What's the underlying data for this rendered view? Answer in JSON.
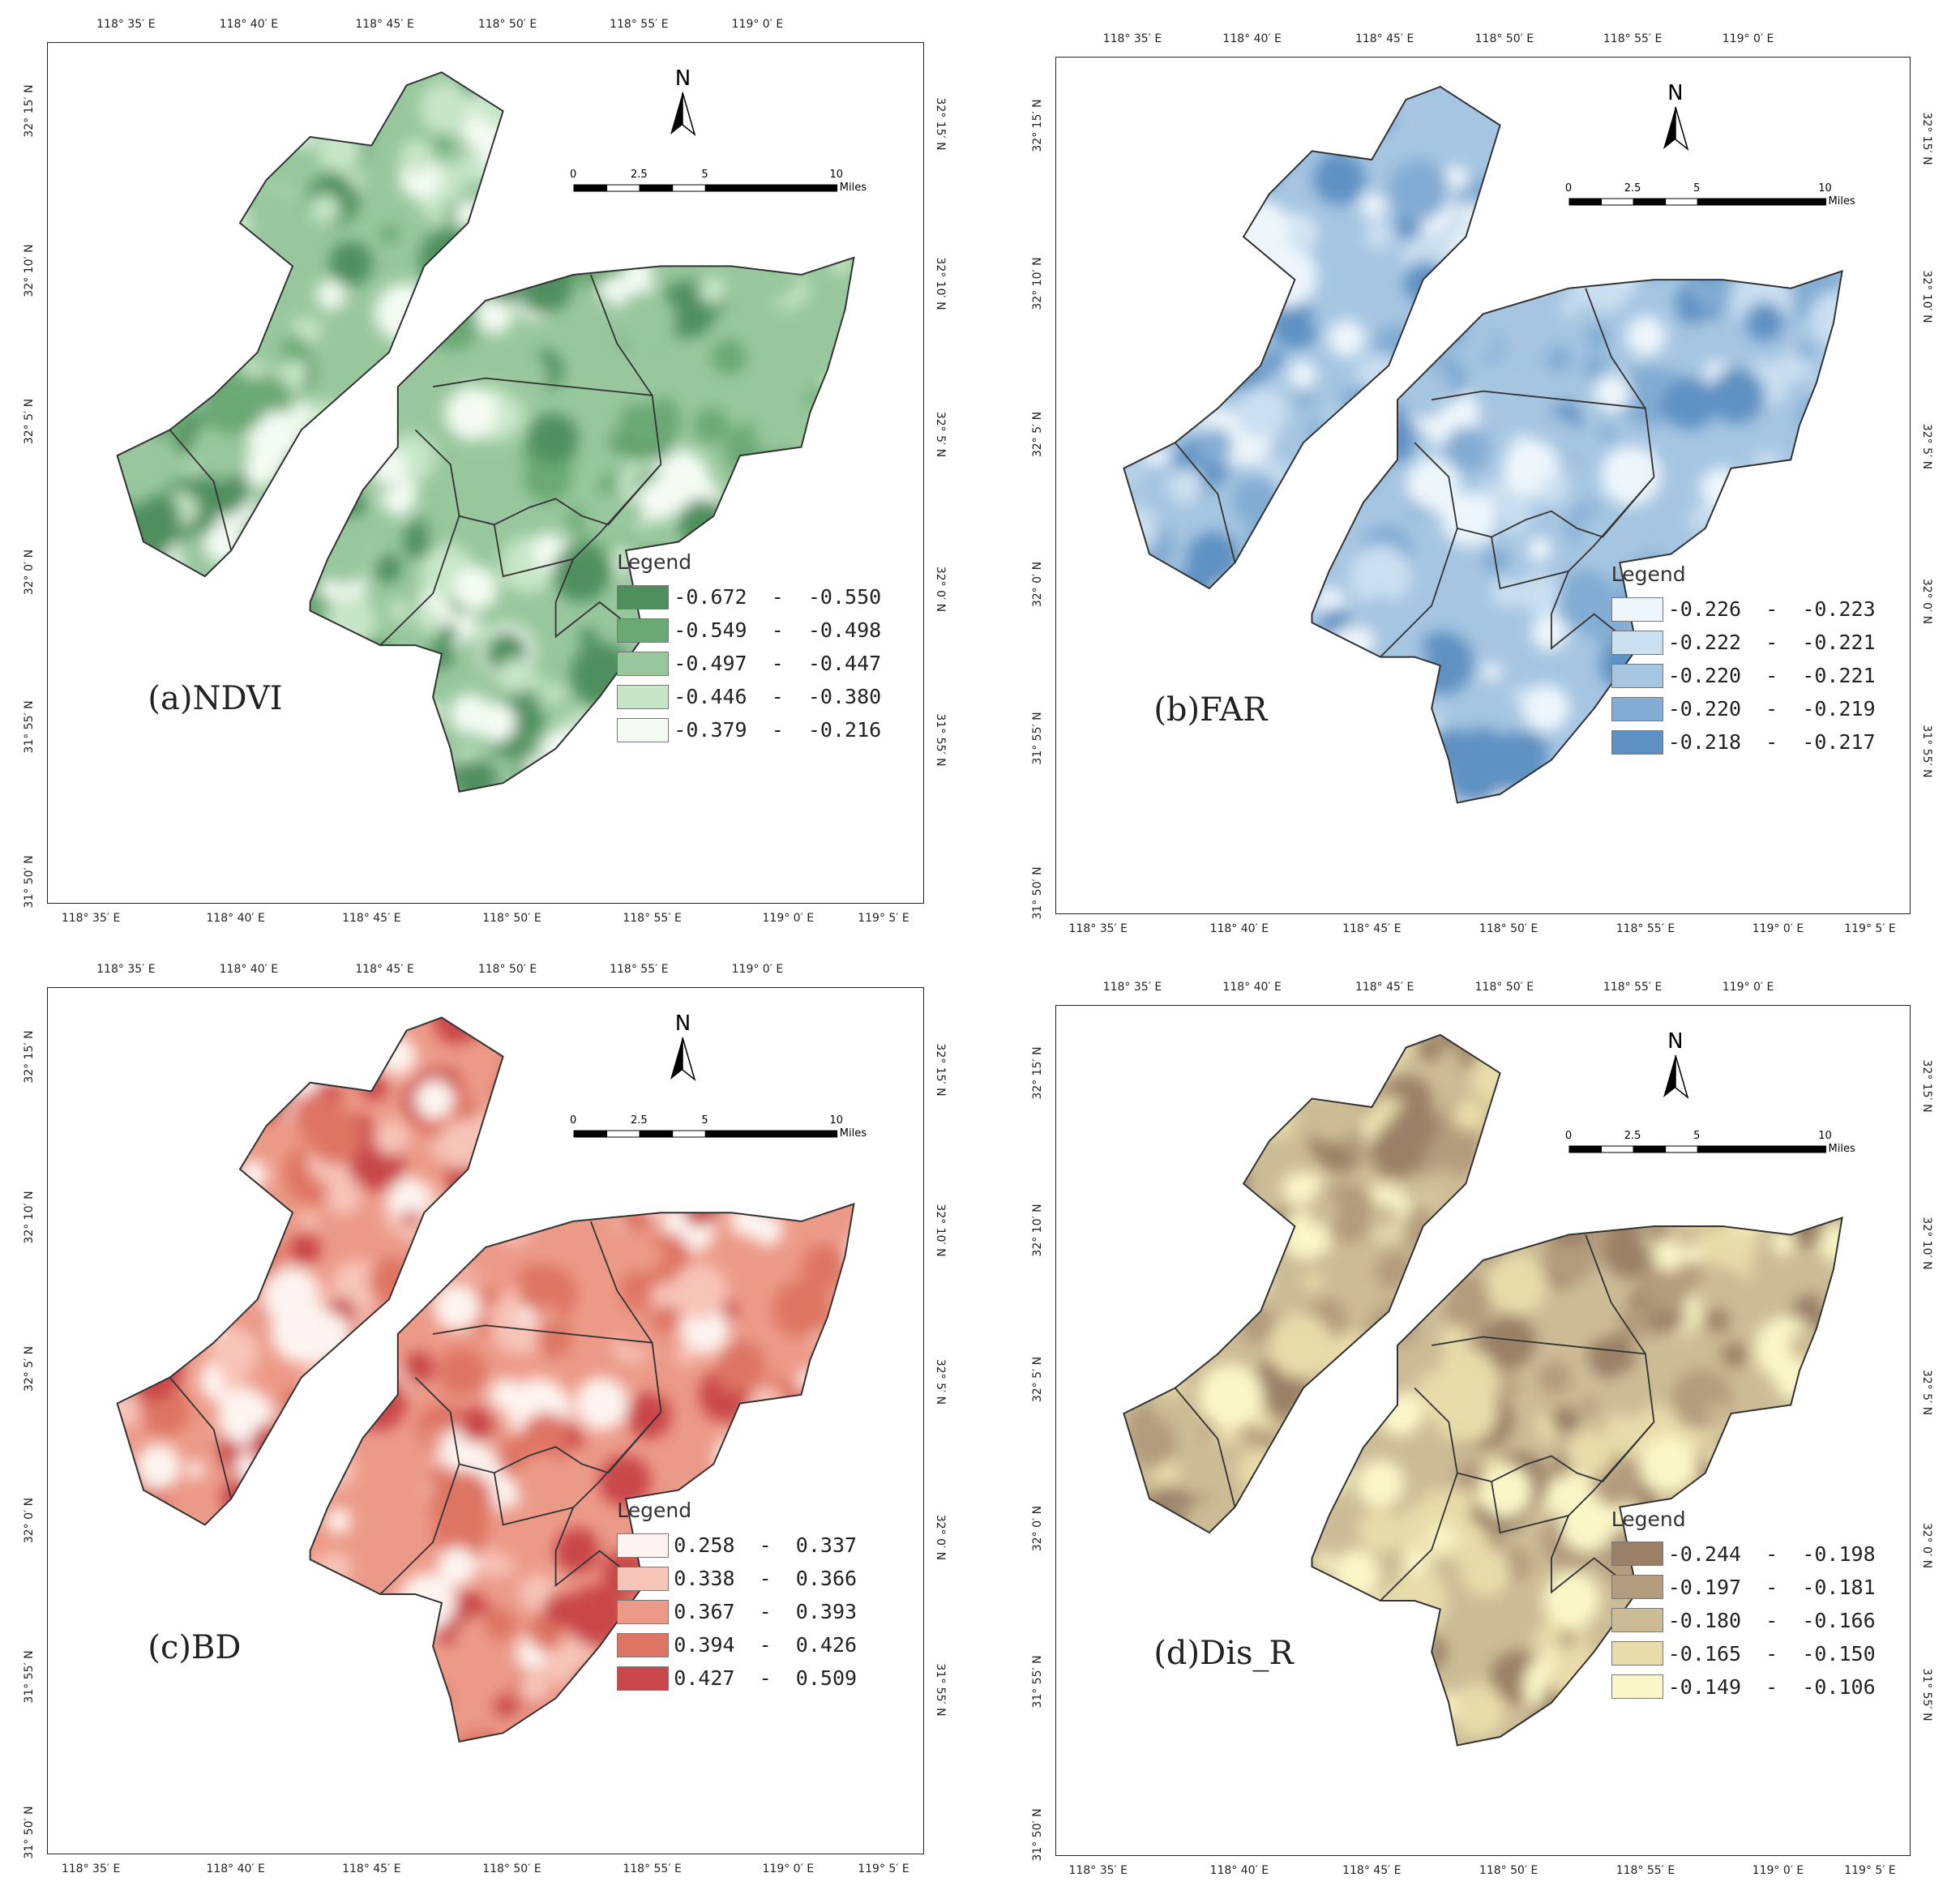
{
  "lon_ticks": [
    "118° 35′ E",
    "118° 40′ E",
    "118° 45′ E",
    "118° 50′ E",
    "118° 55′ E",
    "119° 0′ E",
    "119° 5′ E"
  ],
  "lon_ticks_top": [
    "118° 35′ E",
    "118° 40′ E",
    "118° 45′ E",
    "118° 50′ E",
    "118° 55′ E",
    "119° 0′ E"
  ],
  "lat_ticks": [
    "32° 15′ N",
    "32° 10′ N",
    "32° 5′ N",
    "32° 0′ N",
    "31° 55′ N",
    "31° 50′ N"
  ],
  "lat_ticks_right": [
    "32° 15′ N",
    "32° 10′ N",
    "32° 5′ N",
    "32° 0′ N",
    "31° 55′ N"
  ],
  "north_arrow": {
    "letter": "N",
    "icon": "north-arrow-icon"
  },
  "scale_bar": {
    "labels": [
      "0",
      "2.5",
      "5",
      "10"
    ],
    "units": "Miles"
  },
  "legend_title": "Legend",
  "panels": [
    {
      "id": "a",
      "label": "(a)NDVI",
      "classes": [
        {
          "range": "-0.672  -  -0.550",
          "color": "#4f8f5e"
        },
        {
          "range": "-0.549  -  -0.498",
          "color": "#6aa874"
        },
        {
          "range": "-0.497  -  -0.447",
          "color": "#98c79d"
        },
        {
          "range": "-0.446  -  -0.380",
          "color": "#c7e6c8"
        },
        {
          "range": "-0.379  -  -0.216",
          "color": "#f4fbf3"
        }
      ]
    },
    {
      "id": "b",
      "label": "(b)FAR",
      "classes": [
        {
          "range": "-0.226  -  -0.223",
          "color": "#eef6fb"
        },
        {
          "range": "-0.222  -  -0.221",
          "color": "#cadff0"
        },
        {
          "range": "-0.220  -  -0.221",
          "color": "#a5c5e1"
        },
        {
          "range": "-0.220  -  -0.219",
          "color": "#82acd3"
        },
        {
          "range": "-0.218  -  -0.217",
          "color": "#5e91c2"
        }
      ]
    },
    {
      "id": "c",
      "label": "(c)BD",
      "classes": [
        {
          "range": "0.258  -  0.337",
          "color": "#fdf4f1"
        },
        {
          "range": "0.338  -  0.366",
          "color": "#f7c4b8"
        },
        {
          "range": "0.367  -  0.393",
          "color": "#ec9a88"
        },
        {
          "range": "0.394  -  0.426",
          "color": "#de7563"
        },
        {
          "range": "0.427  -  0.509",
          "color": "#c9474a"
        }
      ]
    },
    {
      "id": "d",
      "label": "(d)Dis_R",
      "classes": [
        {
          "range": "-0.244  -  -0.198",
          "color": "#9a8066"
        },
        {
          "range": "-0.197  -  -0.181",
          "color": "#b39b7d"
        },
        {
          "range": "-0.180  -  -0.166",
          "color": "#ccbc96"
        },
        {
          "range": "-0.165  -  -0.150",
          "color": "#e8dcaa"
        },
        {
          "range": "-0.149  -  -0.106",
          "color": "#fbf6c8"
        }
      ]
    }
  ]
}
